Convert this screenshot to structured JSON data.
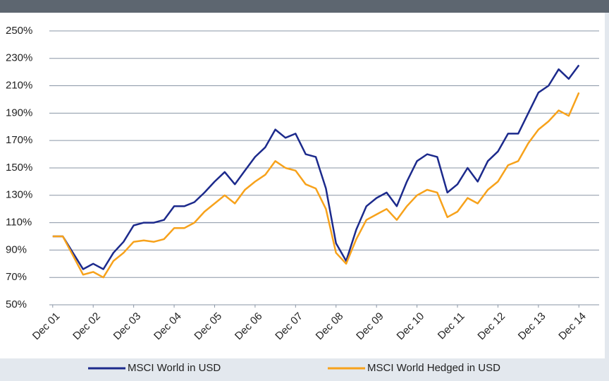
{
  "chart_data": {
    "type": "line",
    "x": [
      0,
      3,
      6,
      9,
      12,
      15,
      18,
      21,
      24,
      27,
      30,
      33,
      36,
      39,
      42,
      45,
      48,
      51,
      54,
      57,
      60,
      63,
      66,
      69,
      72,
      75,
      78,
      81,
      84,
      87,
      90,
      93,
      96,
      99,
      102,
      105,
      108,
      111,
      114,
      117,
      120,
      123,
      126,
      129,
      132,
      135,
      138,
      141,
      144,
      147,
      150,
      153,
      156
    ],
    "series": [
      {
        "name": "MSCI World in USD",
        "color": "#1c2a8c",
        "values": [
          100,
          100,
          88,
          76,
          80,
          76,
          88,
          96,
          108,
          110,
          110,
          112,
          122,
          122,
          125,
          132,
          140,
          147,
          138,
          148,
          158,
          165,
          178,
          172,
          175,
          160,
          158,
          135,
          95,
          82,
          105,
          122,
          128,
          132,
          122,
          140,
          155,
          160,
          158,
          132,
          138,
          150,
          140,
          155,
          162,
          175,
          175,
          190,
          205,
          210,
          222,
          215,
          225
        ]
      },
      {
        "name": "MSCI World Hedged in USD",
        "color": "#f7a21b",
        "values": [
          100,
          100,
          86,
          72,
          74,
          70,
          82,
          88,
          96,
          97,
          96,
          98,
          106,
          106,
          110,
          118,
          124,
          130,
          124,
          134,
          140,
          145,
          155,
          150,
          148,
          138,
          135,
          120,
          88,
          80,
          98,
          112,
          116,
          120,
          112,
          122,
          130,
          134,
          132,
          114,
          118,
          128,
          124,
          134,
          140,
          152,
          155,
          168,
          178,
          184,
          192,
          188,
          205
        ]
      }
    ],
    "xlim": [
      -1,
      162
    ],
    "xticks": [
      {
        "value": 0,
        "label": "Dec 01"
      },
      {
        "value": 12,
        "label": "Dec 02"
      },
      {
        "value": 24,
        "label": "Dec 03"
      },
      {
        "value": 36,
        "label": "Dec 04"
      },
      {
        "value": 48,
        "label": "Dec 05"
      },
      {
        "value": 60,
        "label": "Dec 06"
      },
      {
        "value": 72,
        "label": "Dec 07"
      },
      {
        "value": 84,
        "label": "Dec 08"
      },
      {
        "value": 96,
        "label": "Dec 09"
      },
      {
        "value": 108,
        "label": "Dec 10"
      },
      {
        "value": 120,
        "label": "Dec 11"
      },
      {
        "value": 132,
        "label": "Dec 12"
      },
      {
        "value": 144,
        "label": "Dec 13"
      },
      {
        "value": 156,
        "label": "Dec 14"
      }
    ],
    "ylim": [
      43.3,
      258.2
    ],
    "yticks": [
      {
        "value": 50,
        "label": "50%"
      },
      {
        "value": 70,
        "label": "70%"
      },
      {
        "value": 90,
        "label": "90%"
      },
      {
        "value": 110,
        "label": "110%"
      },
      {
        "value": 130,
        "label": "130%"
      },
      {
        "value": 150,
        "label": "150%"
      },
      {
        "value": 170,
        "label": "170%"
      },
      {
        "value": 190,
        "label": "190%"
      },
      {
        "value": 210,
        "label": "210%"
      },
      {
        "value": 230,
        "label": "230%"
      },
      {
        "value": 250,
        "label": "250%"
      }
    ],
    "grid": true
  }
}
